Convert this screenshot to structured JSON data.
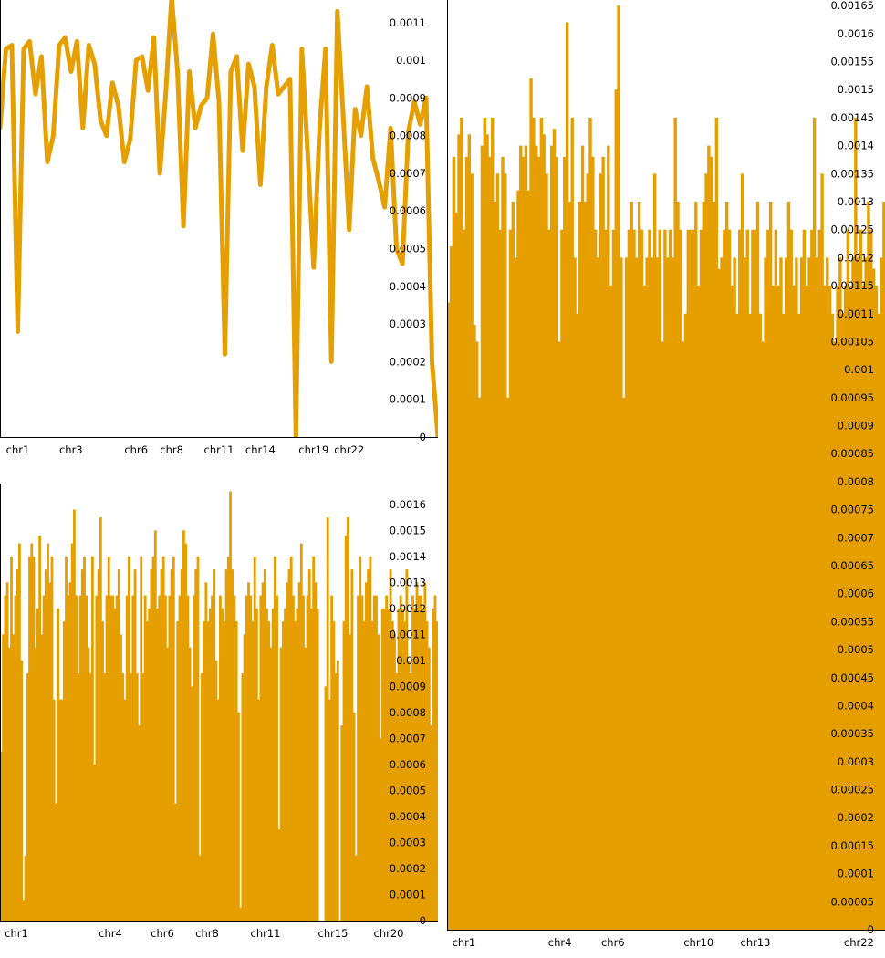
{
  "colors": {
    "series": "#E69F00",
    "axis": "#000000",
    "background": "#FFFFFF"
  },
  "chart_data": [
    {
      "type": "line",
      "ylim": [
        0,
        0.00116
      ],
      "y_ticks": [
        "0",
        "0.0001",
        "0.0002",
        "0.0003",
        "0.0004",
        "0.0005",
        "0.0006",
        "0.0007",
        "0.0008",
        "0.0009",
        "0.001",
        "0.0011"
      ],
      "x_tick_labels": [
        "chr1",
        "chr3",
        "chr6",
        "chr8",
        "chr11",
        "chr14",
        "chr19",
        "chr22"
      ],
      "x_tick_positions": [
        3,
        12,
        23,
        29,
        37,
        44,
        53,
        59
      ],
      "values": [
        0.00082,
        0.00103,
        0.00104,
        0.00028,
        0.00103,
        0.00105,
        0.00091,
        0.00101,
        0.00073,
        0.0008,
        0.00104,
        0.00106,
        0.00097,
        0.00105,
        0.00082,
        0.00104,
        0.00099,
        0.00084,
        0.0008,
        0.00094,
        0.00088,
        0.00073,
        0.00079,
        0.001,
        0.00101,
        0.00092,
        0.00106,
        0.0007,
        0.00091,
        0.00117,
        0.00097,
        0.00056,
        0.00097,
        0.00082,
        0.00088,
        0.0009,
        0.00107,
        0.00089,
        0.00022,
        0.00097,
        0.00101,
        0.00076,
        0.00099,
        0.00093,
        0.00067,
        0.00093,
        0.00104,
        0.00091,
        0.00093,
        0.00095,
        0.0,
        0.00103,
        0.00075,
        0.00045,
        0.00082,
        0.00103,
        0.0002,
        0.00113,
        0.00085,
        0.00055,
        0.00087,
        0.0008,
        0.00093,
        0.00074,
        0.00068,
        0.00061,
        0.00082,
        0.0005,
        0.00046,
        0.00081,
        0.00089,
        0.00083,
        0.0009,
        0.0002,
        0.0
      ]
    },
    {
      "type": "bar",
      "ylim": [
        0,
        0.00168
      ],
      "y_ticks": [
        "0",
        "0.0001",
        "0.0002",
        "0.0003",
        "0.0004",
        "0.0005",
        "0.0006",
        "0.0007",
        "0.0008",
        "0.0009",
        "0.001",
        "0.0011",
        "0.0012",
        "0.0013",
        "0.0014",
        "0.0015",
        "0.0016"
      ],
      "x_tick_labels": [
        "chr1",
        "chr4",
        "chr6",
        "chr8",
        "chr11",
        "chr15",
        "chr20"
      ],
      "x_tick_positions": [
        18,
        121,
        178,
        227,
        291,
        365,
        426
      ],
      "x_range": [
        0,
        480
      ],
      "values": [
        0.00065,
        0.0011,
        0.00125,
        0.0013,
        0.00105,
        0.0014,
        0.0011,
        0.00125,
        0.00135,
        0.00145,
        0.001,
        8e-05,
        0.00025,
        0.00095,
        0.0014,
        0.00145,
        0.0014,
        0.00105,
        0.0012,
        0.00148,
        0.0011,
        0.00125,
        0.00135,
        0.00145,
        0.0013,
        0.0014,
        0.00085,
        0.00045,
        0.0012,
        0.00085,
        0.00085,
        0.00115,
        0.0014,
        0.00125,
        0.0013,
        0.00145,
        0.00158,
        0.00125,
        0.00095,
        0.00125,
        0.00135,
        0.0014,
        0.00125,
        0.00105,
        0.00095,
        0.0014,
        0.0006,
        0.00125,
        0.00135,
        0.00155,
        0.00115,
        0.00095,
        0.00125,
        0.0014,
        0.00125,
        0.00125,
        0.0012,
        0.00125,
        0.00135,
        0.0011,
        0.00095,
        0.00085,
        0.00125,
        0.0014,
        0.00095,
        0.00125,
        0.00135,
        0.00095,
        0.00075,
        0.0014,
        0.00095,
        0.00125,
        0.00115,
        0.0012,
        0.00135,
        0.0014,
        0.0015,
        0.0012,
        0.00125,
        0.00135,
        0.0014,
        0.00125,
        0.00105,
        0.00125,
        0.00135,
        0.0014,
        0.00045,
        0.00115,
        0.00125,
        0.00135,
        0.0015,
        0.00145,
        0.00125,
        0.00105,
        0.0009,
        0.00125,
        0.00135,
        0.0014,
        0.00025,
        0.00095,
        0.00115,
        0.0013,
        0.00115,
        0.0012,
        0.00125,
        0.00135,
        0.001,
        0.00085,
        0.00125,
        0.0012,
        0.00115,
        0.00135,
        0.0014,
        0.00165,
        0.00135,
        0.00125,
        0.00115,
        0.0008,
        5e-05,
        0.00095,
        0.0011,
        0.00125,
        0.0013,
        0.00125,
        0.00115,
        0.0014,
        0.0012,
        0.00085,
        0.00125,
        0.0013,
        0.00135,
        0.0012,
        0.00115,
        0.00105,
        0.0012,
        0.0014,
        0.00125,
        0.00035,
        0.00105,
        0.00115,
        0.0012,
        0.0013,
        0.00135,
        0.0014,
        0.00125,
        0.00115,
        0.0012,
        0.0013,
        0.00145,
        0.00125,
        0.00105,
        0.00125,
        0.00135,
        0.0012,
        0.0014,
        0.0013,
        0.0012,
        0.0,
        0.0,
        0.0,
        0.0009,
        0.00155,
        0.00085,
        0.00125,
        0.00115,
        0.00095,
        0.001,
        0.0,
        0.00075,
        0.00115,
        0.00148,
        0.00155,
        0.0011,
        0.00135,
        0.0008,
        0.00025,
        0.00125,
        0.0014,
        0.00125,
        0.00115,
        0.0013,
        0.00135,
        0.0014,
        0.00115,
        0.00125,
        0.00125,
        0.0011,
        0.0007,
        0.0012,
        0.0012,
        0.00125,
        0.0012,
        0.00135,
        0.00115,
        0.0011,
        0.00095,
        0.0012,
        0.00125,
        0.0012,
        0.00115,
        0.00135,
        0.001,
        0.00095,
        0.00125,
        0.0012,
        0.0013,
        0.00125,
        0.00125,
        0.0012,
        0.0013,
        0.00115,
        0.00105,
        0.00075,
        0.0012,
        0.00125,
        0.00115
      ]
    },
    {
      "type": "bar",
      "ylim": [
        0,
        0.00166
      ],
      "y_ticks": [
        "0",
        "0.00005",
        "0.0001",
        "0.00015",
        "0.0002",
        "0.00025",
        "0.0003",
        "0.00035",
        "0.0004",
        "0.00045",
        "0.0005",
        "0.00055",
        "0.0006",
        "0.00065",
        "0.0007",
        "0.00075",
        "0.0008",
        "0.00085",
        "0.0009",
        "0.00095",
        "0.001",
        "0.00105",
        "0.0011",
        "0.00115",
        "0.0012",
        "0.00125",
        "0.0013",
        "0.00135",
        "0.0014",
        "0.00145",
        "0.0015",
        "0.00155",
        "0.0016",
        "0.00165"
      ],
      "x_tick_labels": [
        "chr1",
        "chr4",
        "chr6",
        "chr10",
        "chr13",
        "chr22"
      ],
      "x_tick_positions": [
        18,
        121,
        178,
        270,
        331,
        442
      ],
      "x_range": [
        0,
        470
      ],
      "values": [
        0.00112,
        0.00122,
        0.00138,
        0.00128,
        0.00142,
        0.00145,
        0.00125,
        0.00138,
        0.00142,
        0.00135,
        0.00108,
        0.00105,
        0.00095,
        0.0014,
        0.00145,
        0.00142,
        0.00138,
        0.00145,
        0.0013,
        0.00135,
        0.00125,
        0.00138,
        0.00135,
        0.00095,
        0.00125,
        0.0013,
        0.0012,
        0.00132,
        0.0014,
        0.00138,
        0.0014,
        0.00132,
        0.00152,
        0.00145,
        0.0014,
        0.00138,
        0.00145,
        0.00142,
        0.00135,
        0.00125,
        0.0014,
        0.00143,
        0.00138,
        0.00105,
        0.00125,
        0.00138,
        0.00162,
        0.0013,
        0.00145,
        0.0012,
        0.0011,
        0.0013,
        0.0014,
        0.0013,
        0.00135,
        0.00145,
        0.00138,
        0.00125,
        0.0012,
        0.00135,
        0.00138,
        0.00125,
        0.0014,
        0.00115,
        0.00125,
        0.0015,
        0.00165,
        0.0012,
        0.00095,
        0.0012,
        0.00125,
        0.0013,
        0.00125,
        0.0012,
        0.0013,
        0.00125,
        0.00115,
        0.0012,
        0.00125,
        0.0012,
        0.00135,
        0.0012,
        0.00125,
        0.00105,
        0.00125,
        0.0012,
        0.00125,
        0.0012,
        0.00145,
        0.0013,
        0.00125,
        0.00105,
        0.0011,
        0.00125,
        0.00125,
        0.00125,
        0.0013,
        0.00115,
        0.00125,
        0.0013,
        0.00135,
        0.0014,
        0.00138,
        0.0013,
        0.00145,
        0.00118,
        0.0012,
        0.00125,
        0.0013,
        0.00125,
        0.00115,
        0.0012,
        0.0011,
        0.00125,
        0.00135,
        0.0012,
        0.00125,
        0.0011,
        0.00125,
        0.00125,
        0.0013,
        0.0011,
        0.00105,
        0.0012,
        0.00125,
        0.0013,
        0.00115,
        0.00125,
        0.00115,
        0.0012,
        0.0011,
        0.0012,
        0.0013,
        0.00125,
        0.00115,
        0.0012,
        0.0011,
        0.0012,
        0.00125,
        0.00115,
        0.0012,
        0.00125,
        0.00145,
        0.0012,
        0.00125,
        0.00135,
        0.00115,
        0.0012,
        0.00115,
        0.0011,
        0.00105,
        0.00115,
        0.0012,
        0.0011,
        0.00115,
        0.00125,
        0.00115,
        0.0012,
        0.00145,
        0.0012,
        0.00125,
        0.00115,
        0.0012,
        0.0013,
        0.00125,
        0.00118,
        0.00115,
        0.0011,
        0.0012,
        0.0013
      ]
    }
  ]
}
